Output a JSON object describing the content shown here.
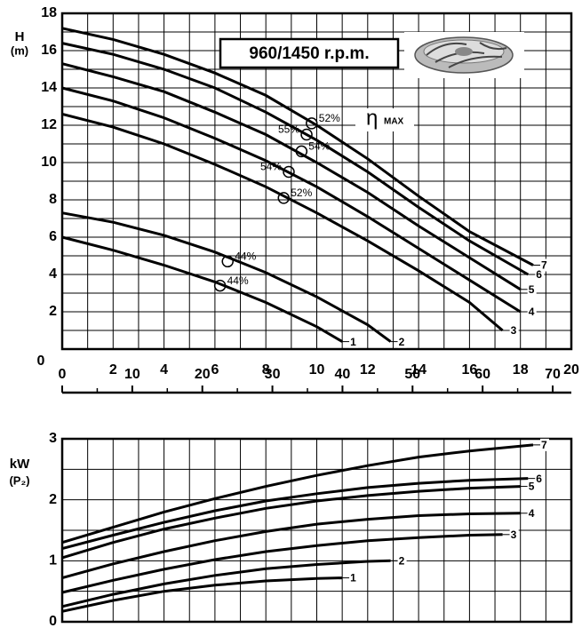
{
  "chart_data": [
    {
      "type": "line",
      "y_label": "H",
      "y_unit": "(m)",
      "annotation": "960/1450 r.p.m.",
      "eta_symbol": "η",
      "eta_label": "MAX",
      "xlim": [
        0,
        20
      ],
      "xticks": [
        0,
        2,
        4,
        6,
        8,
        10,
        12,
        14,
        16,
        18,
        20
      ],
      "ylim": [
        0,
        18
      ],
      "yticks": [
        2,
        4,
        6,
        8,
        10,
        12,
        14,
        16,
        18
      ],
      "x2lim": [
        0,
        70
      ],
      "x2ticks": [
        0,
        10,
        20,
        30,
        40,
        50,
        60,
        70
      ],
      "grid": true,
      "xtick_labels": true,
      "series": [
        {
          "name": "1",
          "color": "#000000",
          "x": [
            0,
            2,
            4,
            6,
            8,
            10,
            11
          ],
          "values": [
            6.0,
            5.3,
            4.5,
            3.6,
            2.5,
            1.2,
            0.4
          ]
        },
        {
          "name": "2",
          "color": "#000000",
          "x": [
            0,
            2,
            4,
            6,
            8,
            10,
            12,
            12.9
          ],
          "values": [
            7.3,
            6.8,
            6.1,
            5.2,
            4.1,
            2.8,
            1.3,
            0.4
          ]
        },
        {
          "name": "3",
          "color": "#000000",
          "x": [
            0,
            2,
            4,
            6,
            8,
            10,
            12,
            14,
            16,
            17.3
          ],
          "values": [
            12.6,
            11.9,
            11.0,
            9.9,
            8.7,
            7.3,
            5.8,
            4.2,
            2.5,
            1.0
          ]
        },
        {
          "name": "4",
          "color": "#000000",
          "x": [
            0,
            2,
            4,
            6,
            8,
            10,
            12,
            14,
            16,
            18
          ],
          "values": [
            14.0,
            13.3,
            12.4,
            11.3,
            10.1,
            8.7,
            7.1,
            5.4,
            3.7,
            2.0
          ]
        },
        {
          "name": "5",
          "color": "#000000",
          "x": [
            0,
            2,
            4,
            6,
            8,
            10,
            12,
            14,
            16,
            18
          ],
          "values": [
            15.3,
            14.6,
            13.8,
            12.7,
            11.5,
            10.0,
            8.4,
            6.6,
            4.9,
            3.2
          ]
        },
        {
          "name": "6",
          "color": "#000000",
          "x": [
            0,
            2,
            4,
            6,
            8,
            10,
            12,
            14,
            16,
            18.3
          ],
          "values": [
            16.4,
            15.8,
            15.0,
            14.0,
            12.7,
            11.2,
            9.5,
            7.6,
            5.8,
            4.0
          ]
        },
        {
          "name": "7",
          "color": "#000000",
          "x": [
            0,
            2,
            4,
            6,
            8,
            10,
            12,
            14,
            16,
            18.5
          ],
          "values": [
            17.2,
            16.6,
            15.8,
            14.8,
            13.6,
            12.0,
            10.2,
            8.2,
            6.3,
            4.5
          ]
        }
      ],
      "efficiency_points": {
        "x": [
          9.8,
          9.6,
          9.4,
          8.9,
          8.7,
          6.5,
          6.2
        ],
        "y": [
          12.1,
          11.5,
          10.6,
          9.5,
          8.1,
          4.7,
          3.4
        ],
        "labels": [
          "52%",
          "55%",
          "54%",
          "54%",
          "52%",
          "44%",
          "44%"
        ]
      }
    },
    {
      "type": "line",
      "y_label": "kW",
      "y_unit": "(P₂)",
      "xlim": [
        0,
        20
      ],
      "xticks": [
        0,
        2,
        4,
        6,
        8,
        10,
        12,
        14,
        16,
        18,
        20
      ],
      "ylim": [
        0,
        3
      ],
      "yticks": [
        0,
        1,
        2,
        3
      ],
      "grid": true,
      "xtick_labels": false,
      "series": [
        {
          "name": "1",
          "color": "#000000",
          "x": [
            0,
            2,
            4,
            6,
            8,
            10,
            11
          ],
          "values": [
            0.17,
            0.35,
            0.5,
            0.6,
            0.67,
            0.71,
            0.72
          ]
        },
        {
          "name": "2",
          "color": "#000000",
          "x": [
            0,
            2,
            4,
            6,
            8,
            10,
            12,
            12.9
          ],
          "values": [
            0.25,
            0.45,
            0.62,
            0.76,
            0.87,
            0.94,
            0.99,
            1.0
          ]
        },
        {
          "name": "3",
          "color": "#000000",
          "x": [
            0,
            2,
            4,
            6,
            8,
            10,
            12,
            14,
            16,
            17.3
          ],
          "values": [
            0.48,
            0.68,
            0.86,
            1.02,
            1.15,
            1.25,
            1.33,
            1.38,
            1.42,
            1.43
          ]
        },
        {
          "name": "4",
          "color": "#000000",
          "x": [
            0,
            2,
            4,
            6,
            8,
            10,
            12,
            14,
            16,
            18
          ],
          "values": [
            0.72,
            0.95,
            1.15,
            1.33,
            1.48,
            1.6,
            1.68,
            1.74,
            1.77,
            1.78
          ]
        },
        {
          "name": "5",
          "color": "#000000",
          "x": [
            0,
            2,
            4,
            6,
            8,
            10,
            12,
            14,
            16,
            18
          ],
          "values": [
            1.05,
            1.3,
            1.52,
            1.7,
            1.86,
            1.98,
            2.07,
            2.14,
            2.19,
            2.22
          ]
        },
        {
          "name": "6",
          "color": "#000000",
          "x": [
            0,
            2,
            4,
            6,
            8,
            10,
            12,
            14,
            16,
            18.3
          ],
          "values": [
            1.2,
            1.42,
            1.63,
            1.82,
            1.98,
            2.1,
            2.2,
            2.27,
            2.32,
            2.35
          ]
        },
        {
          "name": "7",
          "color": "#000000",
          "x": [
            0,
            2,
            4,
            6,
            8,
            10,
            12,
            14,
            16,
            18.5
          ],
          "values": [
            1.3,
            1.55,
            1.8,
            2.02,
            2.22,
            2.4,
            2.56,
            2.7,
            2.8,
            2.9
          ]
        }
      ]
    }
  ]
}
